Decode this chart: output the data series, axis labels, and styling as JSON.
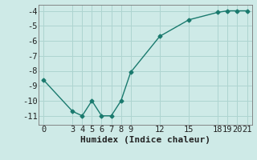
{
  "xlabel": "Humidex (Indice chaleur)",
  "background_color": "#ceeae7",
  "grid_color": "#aed4d0",
  "line_color": "#1a7a6e",
  "x_data": [
    0,
    3,
    4,
    5,
    6,
    7,
    8,
    9,
    12,
    15,
    18,
    19,
    20,
    21
  ],
  "y_data": [
    -8.6,
    -10.7,
    -11.0,
    -10.0,
    -11.0,
    -11.0,
    -10.0,
    -8.1,
    -5.7,
    -4.6,
    -4.1,
    -4.0,
    -4.0,
    -4.0
  ],
  "xlim": [
    -0.5,
    21.5
  ],
  "ylim": [
    -11.6,
    -3.6
  ],
  "xticks": [
    0,
    3,
    4,
    5,
    6,
    7,
    8,
    9,
    12,
    15,
    18,
    19,
    20,
    21
  ],
  "yticks": [
    -11,
    -10,
    -9,
    -8,
    -7,
    -6,
    -5,
    -4
  ],
  "marker": "D",
  "marker_size": 2.5,
  "line_width": 1.0,
  "font_size": 7.5,
  "xlabel_fontsize": 8
}
